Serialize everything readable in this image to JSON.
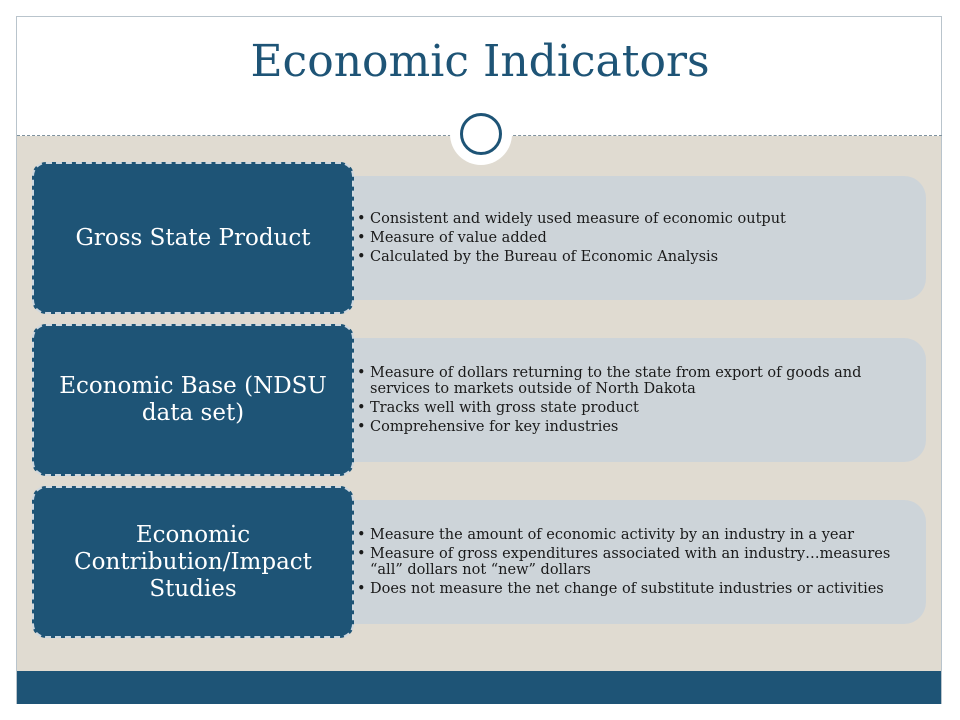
{
  "slide": {
    "title": "Economic Indicators",
    "accent_color": "#1e5476",
    "panel_color": "#e0dbd1",
    "detail_color": "#cdd4d9"
  },
  "rows": [
    {
      "heading": "Gross State Product",
      "bullets": [
        "Consistent and widely used measure of economic output",
        "Measure of value added",
        "Calculated by the Bureau of Economic Analysis"
      ]
    },
    {
      "heading": "Economic Base (NDSU data set)",
      "bullets": [
        "Measure of dollars returning to the state from export of goods and services to markets outside of North Dakota",
        "Tracks well with gross state product",
        "Comprehensive for key industries"
      ]
    },
    {
      "heading": "Economic Contribution/Impact Studies",
      "bullets": [
        "Measure the amount of economic activity by an industry in a year",
        "Measure of gross expenditures associated with an industry…measures “all” dollars not “new” dollars",
        "Does not measure the net change of substitute industries or activities"
      ]
    }
  ]
}
